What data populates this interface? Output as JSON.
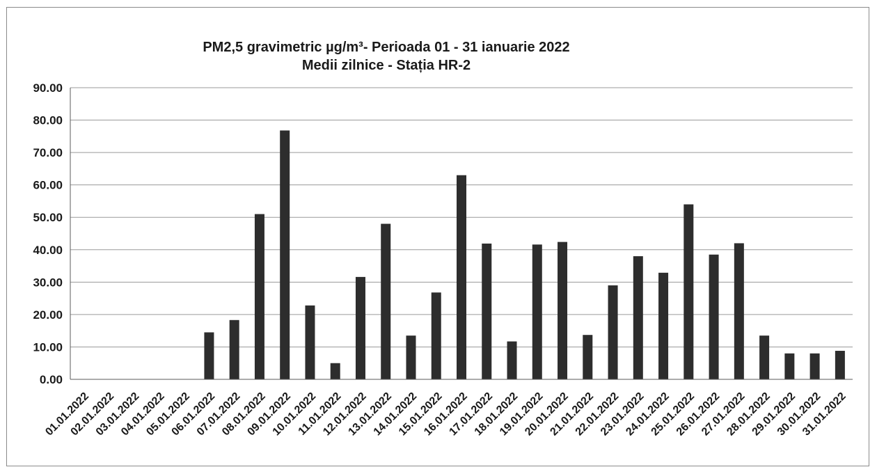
{
  "chart_data": {
    "type": "bar",
    "title": "PM2,5 gravimetric µg/m³- Perioada 01 - 31 ianuarie 2022",
    "subtitle": "Medii zilnice - Stația HR-2",
    "xlabel": "",
    "ylabel": "",
    "ylim": [
      0,
      90
    ],
    "yticks": [
      "0.00",
      "10.00",
      "20.00",
      "30.00",
      "40.00",
      "50.00",
      "60.00",
      "70.00",
      "80.00",
      "90.00"
    ],
    "grid": true,
    "legend": "none",
    "bar_color": "#2d2d2d",
    "categories": [
      "01.01.2022",
      "02.01.2022",
      "03.01.2022",
      "04.01.2022",
      "05.01.2022",
      "06.01.2022",
      "07.01.2022",
      "08.01.2022",
      "09.01.2022",
      "10.01.2022",
      "11.01.2022",
      "12.01.2022",
      "13.01.2022",
      "14.01.2022",
      "15.01.2022",
      "16.01.2022",
      "17.01.2022",
      "18.01.2022",
      "19.01.2022",
      "20.01.2022",
      "21.01.2022",
      "22.01.2022",
      "23.01.2022",
      "24.01.2022",
      "25.01.2022",
      "26.01.2022",
      "27.01.2022",
      "28.01.2022",
      "29.01.2022",
      "30.01.2022",
      "31.01.2022"
    ],
    "values": [
      0,
      0,
      0,
      0,
      0,
      14.5,
      18.3,
      51.0,
      76.8,
      22.8,
      5.0,
      31.6,
      48.0,
      13.5,
      26.8,
      63.0,
      41.9,
      11.7,
      41.6,
      42.4,
      13.7,
      29.0,
      38.0,
      32.9,
      54.0,
      38.5,
      42.0,
      13.5,
      8.0,
      8.0,
      8.8
    ]
  }
}
